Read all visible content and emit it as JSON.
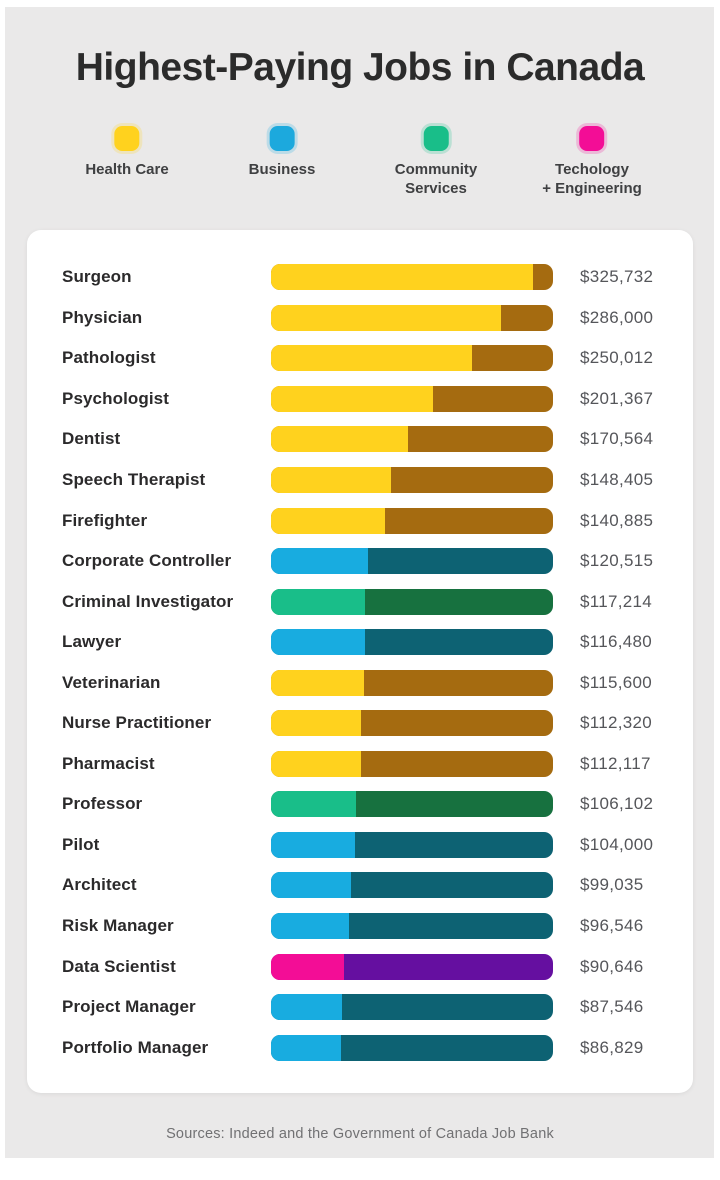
{
  "title": "Highest-Paying Jobs in Canada",
  "footer": {
    "sources": "Sources: Indeed and the Government of Canada Job Bank"
  },
  "legend": [
    {
      "label": "Health Care",
      "key": "health",
      "color": "#FFD21E"
    },
    {
      "label": "Business",
      "key": "business",
      "color": "#1CA9DD"
    },
    {
      "label": "Community\nServices",
      "key": "community",
      "color": "#19BE89"
    },
    {
      "label": "Techology\n+ Engineering",
      "key": "tech",
      "color": "#F30D96"
    }
  ],
  "colors": {
    "health": {
      "light": "#FFD21E",
      "dark": "#A56B10"
    },
    "business": {
      "light": "#18ACE0",
      "dark": "#0D6273"
    },
    "community": {
      "light": "#19BE89",
      "dark": "#17713F"
    },
    "tech": {
      "light": "#F30D96",
      "dark": "#650FA0"
    }
  },
  "chart_data": {
    "type": "bar",
    "orientation": "horizontal",
    "title": "Highest-Paying Jobs in Canada",
    "value_axis_max": 350000,
    "legend_position": "top",
    "categories_legend": [
      "Health Care",
      "Business",
      "Community Services",
      "Techology + Engineering"
    ],
    "rows": [
      {
        "label": "Surgeon",
        "value": 325732,
        "value_label": "$325,732",
        "category": "health"
      },
      {
        "label": "Physician",
        "value": 286000,
        "value_label": "$286,000",
        "category": "health"
      },
      {
        "label": "Pathologist",
        "value": 250012,
        "value_label": "$250,012",
        "category": "health"
      },
      {
        "label": "Psychologist",
        "value": 201367,
        "value_label": "$201,367",
        "category": "health"
      },
      {
        "label": "Dentist",
        "value": 170564,
        "value_label": "$170,564",
        "category": "health"
      },
      {
        "label": "Speech Therapist",
        "value": 148405,
        "value_label": "$148,405",
        "category": "health"
      },
      {
        "label": "Firefighter",
        "value": 140885,
        "value_label": "$140,885",
        "category": "health"
      },
      {
        "label": "Corporate Controller",
        "value": 120515,
        "value_label": "$120,515",
        "category": "business"
      },
      {
        "label": "Criminal Investigator",
        "value": 117214,
        "value_label": "$117,214",
        "category": "community"
      },
      {
        "label": "Lawyer",
        "value": 116480,
        "value_label": "$116,480",
        "category": "business"
      },
      {
        "label": "Veterinarian",
        "value": 115600,
        "value_label": "$115,600",
        "category": "health"
      },
      {
        "label": "Nurse Practitioner",
        "value": 112320,
        "value_label": "$112,320",
        "category": "health"
      },
      {
        "label": "Pharmacist",
        "value": 112117,
        "value_label": "$112,117",
        "category": "health"
      },
      {
        "label": "Professor",
        "value": 106102,
        "value_label": "$106,102",
        "category": "community"
      },
      {
        "label": "Pilot",
        "value": 104000,
        "value_label": "$104,000",
        "category": "business"
      },
      {
        "label": "Architect",
        "value": 99035,
        "value_label": "$99,035",
        "category": "business"
      },
      {
        "label": "Risk Manager",
        "value": 96546,
        "value_label": "$96,546",
        "category": "business"
      },
      {
        "label": "Data Scientist",
        "value": 90646,
        "value_label": "$90,646",
        "category": "tech"
      },
      {
        "label": "Project Manager",
        "value": 87546,
        "value_label": "$87,546",
        "category": "business"
      },
      {
        "label": "Portfolio Manager",
        "value": 86829,
        "value_label": "$86,829",
        "category": "business"
      }
    ]
  }
}
